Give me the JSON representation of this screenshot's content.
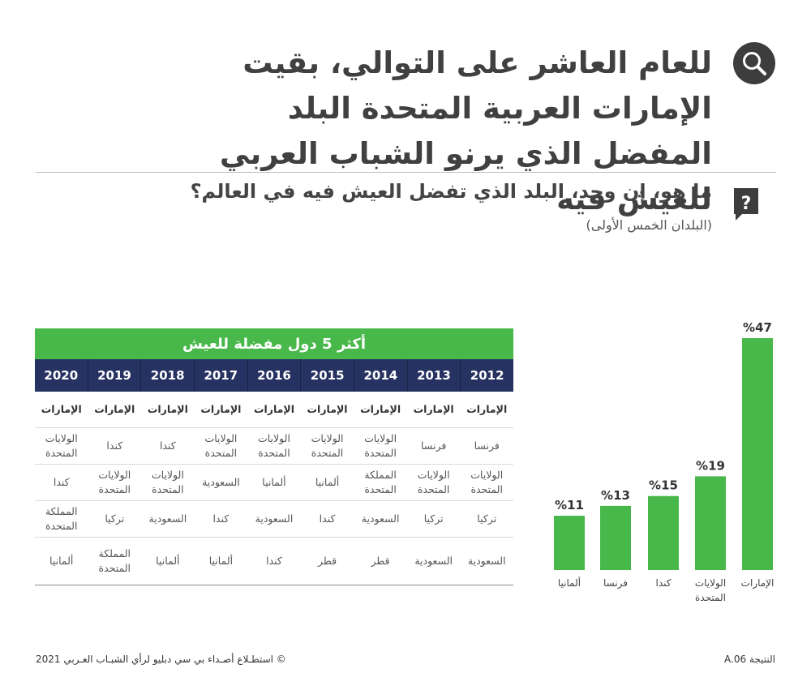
{
  "header": {
    "title": "للعام العاشر على التوالي، بقيت الإمارات العربية المتحدة البلد المفضل الذي يرنو الشباب العربي للعيش فيه",
    "search_icon": "search-icon",
    "question": "ما هو، إن وجد، البلد الذي تفضل العيش فيه في العالم؟",
    "question_icon": "question-icon",
    "subtitle": "(البلدان الخمس الأولى)"
  },
  "table": {
    "title": "أكثر 5 دول مفضلة للعيش",
    "years": [
      "2012",
      "2013",
      "2014",
      "2015",
      "2016",
      "2017",
      "2018",
      "2019",
      "2020"
    ],
    "rows": [
      [
        "الإمارات",
        "الإمارات",
        "الإمارات",
        "الإمارات",
        "الإمارات",
        "الإمارات",
        "الإمارات",
        "الإمارات",
        "الإمارات"
      ],
      [
        "فرنسا",
        "فرنسا",
        "الولايات المتحدة",
        "الولايات المتحدة",
        "الولايات المتحدة",
        "الولايات المتحدة",
        "كندا",
        "كندا",
        "الولايات المتحدة"
      ],
      [
        "الولايات المتحدة",
        "الولايات المتحدة",
        "المملكة المتحدة",
        "ألمانيا",
        "ألمانيا",
        "السعودية",
        "الولايات المتحدة",
        "الولايات المتحدة",
        "كندا"
      ],
      [
        "تركيا",
        "تركيا",
        "السعودية",
        "كندا",
        "السعودية",
        "كندا",
        "السعودية",
        "تركيا",
        "المملكة المتحدة"
      ],
      [
        "السعودية",
        "السعودية",
        "قطر",
        "قطر",
        "كندا",
        "ألمانيا",
        "ألمانيا",
        "المملكة المتحدة",
        "ألمانيا"
      ]
    ]
  },
  "chart_data": {
    "type": "bar",
    "categories": [
      "الإمارات",
      "الولايات المتحدة",
      "كندا",
      "فرنسا",
      "ألمانيا"
    ],
    "values": [
      47,
      19,
      15,
      13,
      11
    ],
    "value_labels": [
      "%47",
      "%19",
      "%15",
      "%13",
      "%11"
    ],
    "ylim": [
      0,
      47
    ],
    "grid": false,
    "color": "#47b849"
  },
  "footer": {
    "left": "©  استطـلاع أصـداء بي سي دبليو لرأي الشبـاب العـربي 2021",
    "right": "النتيجة A.06"
  }
}
